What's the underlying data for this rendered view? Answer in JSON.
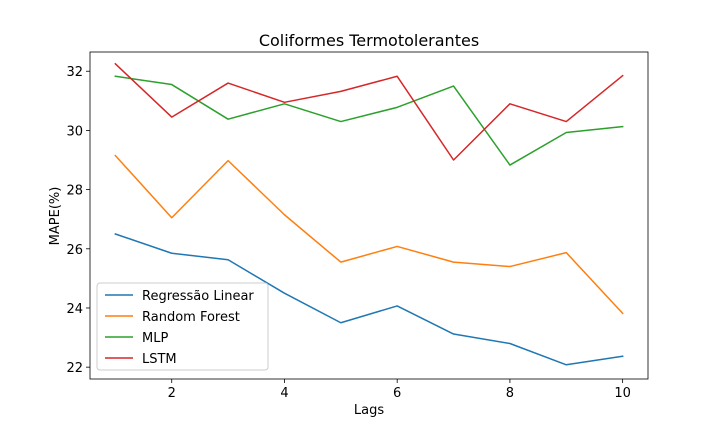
{
  "chart_data": {
    "type": "line",
    "title": "Coliformes Termotolerantes",
    "xlabel": "Lags",
    "ylabel": "MAPE(%)",
    "x": [
      1,
      2,
      3,
      4,
      5,
      6,
      7,
      8,
      9,
      10
    ],
    "xlim": [
      0.55,
      10.45
    ],
    "ylim": [
      21.6,
      32.65
    ],
    "xticks": [
      2,
      4,
      6,
      8,
      10
    ],
    "yticks": [
      22,
      24,
      26,
      28,
      30,
      32
    ],
    "grid": false,
    "legend_position": "lower-left",
    "series": [
      {
        "name": "Regressão Linear",
        "color": "#1f77b4",
        "values": [
          26.5,
          25.85,
          25.63,
          24.5,
          23.5,
          24.07,
          23.12,
          22.8,
          22.08,
          22.37
        ]
      },
      {
        "name": "Random Forest",
        "color": "#ff7f0e",
        "values": [
          29.15,
          27.05,
          28.98,
          27.15,
          25.55,
          26.08,
          25.55,
          25.4,
          25.87,
          23.82
        ]
      },
      {
        "name": "MLP",
        "color": "#2ca02c",
        "values": [
          31.83,
          31.55,
          30.38,
          30.9,
          30.3,
          30.78,
          31.5,
          28.83,
          29.93,
          30.13
        ]
      },
      {
        "name": "LSTM",
        "color": "#d62728",
        "values": [
          32.25,
          30.45,
          31.6,
          30.95,
          31.32,
          31.83,
          29.0,
          30.9,
          30.3,
          31.85
        ]
      }
    ]
  }
}
